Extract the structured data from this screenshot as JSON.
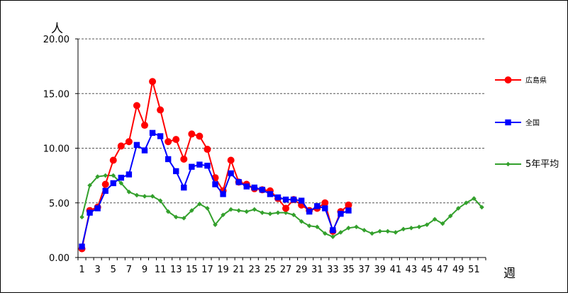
{
  "chart_data": {
    "type": "line",
    "y_unit_label": "人",
    "x_unit_label": "週",
    "ylim": [
      0,
      20
    ],
    "y_ticks": [
      "0.00",
      "5.00",
      "10.00",
      "15.00",
      "20.00"
    ],
    "x_ticks": [
      "1",
      "3",
      "5",
      "7",
      "9",
      "11",
      "13",
      "15",
      "17",
      "19",
      "21",
      "23",
      "25",
      "27",
      "29",
      "31",
      "33",
      "35",
      "37",
      "39",
      "41",
      "43",
      "45",
      "47",
      "49",
      "51"
    ],
    "grid": "horizontal-dashed",
    "legend_position": "right",
    "series": [
      {
        "name": "広島県",
        "color": "#ff0000",
        "marker": "circle",
        "x": [
          1,
          2,
          3,
          4,
          5,
          6,
          7,
          8,
          9,
          10,
          11,
          12,
          13,
          14,
          15,
          16,
          17,
          18,
          19,
          20,
          21,
          22,
          23,
          24,
          25,
          26,
          27,
          28,
          29,
          30,
          31,
          32,
          33,
          34,
          35
        ],
        "values": [
          0.8,
          4.3,
          4.6,
          6.7,
          8.9,
          10.2,
          10.6,
          13.9,
          12.1,
          16.1,
          13.5,
          10.6,
          10.8,
          9.0,
          11.3,
          11.1,
          9.9,
          7.3,
          6.1,
          8.9,
          6.9,
          6.7,
          6.3,
          6.2,
          6.1,
          5.4,
          4.5,
          5.3,
          4.8,
          4.3,
          4.5,
          5.0,
          2.4,
          4.2,
          4.8
        ]
      },
      {
        "name": "全国",
        "color": "#0000ff",
        "marker": "square",
        "x": [
          1,
          2,
          3,
          4,
          5,
          6,
          7,
          8,
          9,
          10,
          11,
          12,
          13,
          14,
          15,
          16,
          17,
          18,
          19,
          20,
          21,
          22,
          23,
          24,
          25,
          26,
          27,
          28,
          29,
          30,
          31,
          32,
          33,
          34,
          35
        ],
        "values": [
          1.0,
          4.1,
          4.5,
          6.1,
          6.8,
          7.3,
          7.6,
          10.3,
          9.8,
          11.4,
          11.1,
          9.0,
          7.9,
          6.4,
          8.3,
          8.5,
          8.4,
          6.7,
          5.8,
          7.7,
          6.9,
          6.5,
          6.4,
          6.2,
          5.8,
          5.5,
          5.3,
          5.3,
          5.2,
          4.2,
          4.7,
          4.5,
          2.5,
          4.0,
          4.3
        ]
      },
      {
        "name": "5年平均",
        "color": "#33a02c",
        "marker": "diamond",
        "x": [
          1,
          2,
          3,
          4,
          5,
          6,
          7,
          8,
          9,
          10,
          11,
          12,
          13,
          14,
          15,
          16,
          17,
          18,
          19,
          20,
          21,
          22,
          23,
          24,
          25,
          26,
          27,
          28,
          29,
          30,
          31,
          32,
          33,
          34,
          35,
          36,
          37,
          38,
          39,
          40,
          41,
          42,
          43,
          44,
          45,
          46,
          47,
          48,
          49,
          50,
          51,
          52
        ],
        "values": [
          3.7,
          6.6,
          7.4,
          7.5,
          7.5,
          6.8,
          6.0,
          5.7,
          5.6,
          5.6,
          5.2,
          4.2,
          3.7,
          3.6,
          4.3,
          4.9,
          4.5,
          3.0,
          3.9,
          4.4,
          4.3,
          4.2,
          4.4,
          4.1,
          4.0,
          4.1,
          4.1,
          3.9,
          3.3,
          2.9,
          2.8,
          2.2,
          1.9,
          2.3,
          2.7,
          2.8,
          2.5,
          2.2,
          2.4,
          2.4,
          2.3,
          2.6,
          2.7,
          2.8,
          3.0,
          3.5,
          3.1,
          3.8,
          4.5,
          5.0,
          5.4,
          4.6
        ]
      }
    ]
  }
}
